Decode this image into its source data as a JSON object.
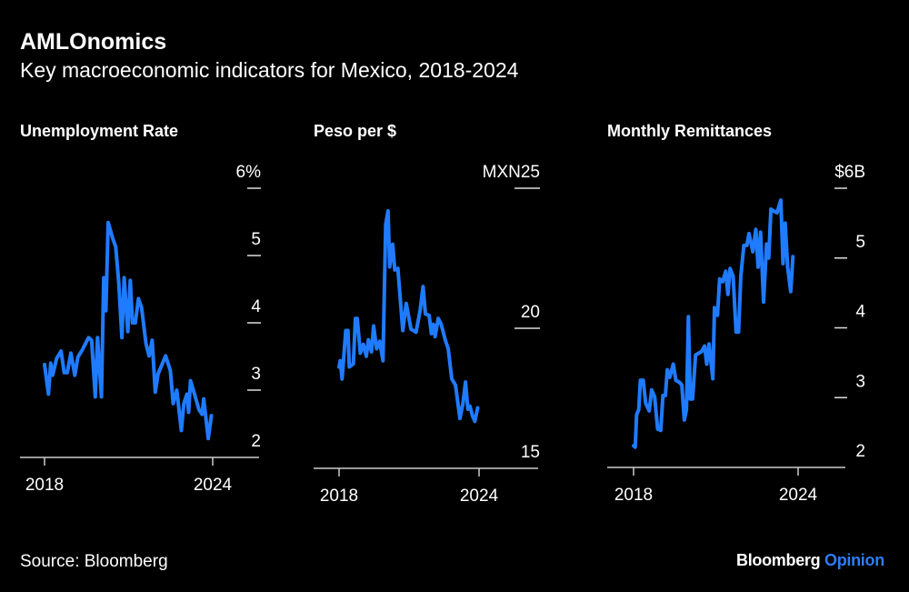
{
  "header": {
    "title": "AMLOnomics",
    "subtitle": "Key macroeconomic indicators for Mexico, 2018-2024"
  },
  "footer": {
    "source": "Source: Bloomberg",
    "brand_main": "Bloomberg",
    "brand_accent": "Opinion"
  },
  "colors": {
    "line": "#1f7bff",
    "background": "#000000",
    "text": "#ffffff",
    "axis": "#cccccc",
    "brand_accent": "#2f7cf6"
  },
  "chart_data": [
    {
      "type": "line",
      "title": "Unemployment Rate",
      "ylim": [
        2,
        6
      ],
      "yticks": [
        2,
        3,
        4,
        5,
        6
      ],
      "ytick_labels": [
        "2",
        "3",
        "4",
        "5",
        "6%"
      ],
      "xlim": [
        2018,
        2024
      ],
      "xtick_labels": [
        "2018",
        "2024"
      ],
      "grid": false,
      "points": [
        [
          2018.0,
          3.38
        ],
        [
          2018.14,
          2.94
        ],
        [
          2018.22,
          3.4
        ],
        [
          2018.29,
          3.22
        ],
        [
          2018.43,
          3.47
        ],
        [
          2018.59,
          3.58
        ],
        [
          2018.7,
          3.26
        ],
        [
          2018.81,
          3.26
        ],
        [
          2018.94,
          3.55
        ],
        [
          2019.08,
          3.22
        ],
        [
          2019.19,
          3.49
        ],
        [
          2019.35,
          3.6
        ],
        [
          2019.57,
          3.78
        ],
        [
          2019.68,
          3.74
        ],
        [
          2019.81,
          2.9
        ],
        [
          2019.89,
          3.78
        ],
        [
          2020.03,
          2.9
        ],
        [
          2020.11,
          4.67
        ],
        [
          2020.19,
          4.18
        ],
        [
          2020.27,
          5.49
        ],
        [
          2020.43,
          5.26
        ],
        [
          2020.54,
          5.13
        ],
        [
          2020.65,
          4.59
        ],
        [
          2020.76,
          3.78
        ],
        [
          2020.84,
          4.67
        ],
        [
          2020.97,
          3.87
        ],
        [
          2021.06,
          4.63
        ],
        [
          2021.14,
          4.0
        ],
        [
          2021.24,
          4.0
        ],
        [
          2021.35,
          4.36
        ],
        [
          2021.46,
          4.23
        ],
        [
          2021.62,
          3.69
        ],
        [
          2021.73,
          3.51
        ],
        [
          2021.84,
          3.74
        ],
        [
          2021.95,
          2.97
        ],
        [
          2022.05,
          3.24
        ],
        [
          2022.32,
          3.51
        ],
        [
          2022.49,
          3.29
        ],
        [
          2022.59,
          2.8
        ],
        [
          2022.72,
          3.0
        ],
        [
          2022.88,
          2.4
        ],
        [
          2022.97,
          2.8
        ],
        [
          2023.08,
          2.94
        ],
        [
          2023.14,
          2.67
        ],
        [
          2023.21,
          3.14
        ],
        [
          2023.35,
          2.94
        ],
        [
          2023.51,
          2.71
        ],
        [
          2023.62,
          2.64
        ],
        [
          2023.68,
          2.87
        ],
        [
          2023.84,
          2.28
        ],
        [
          2023.95,
          2.62
        ]
      ]
    },
    {
      "type": "line",
      "title": "Peso per $",
      "ylim": [
        15,
        25
      ],
      "yticks": [
        15,
        20,
        25
      ],
      "ytick_labels": [
        "15",
        "20",
        "MXN25"
      ],
      "xlim": [
        2018,
        2024
      ],
      "xtick_labels": [
        "2018",
        "2024"
      ],
      "grid": false,
      "points": [
        [
          2018.0,
          18.62
        ],
        [
          2018.05,
          18.84
        ],
        [
          2018.13,
          18.19
        ],
        [
          2018.29,
          19.92
        ],
        [
          2018.38,
          19.92
        ],
        [
          2018.44,
          18.62
        ],
        [
          2018.61,
          18.73
        ],
        [
          2018.7,
          20.35
        ],
        [
          2018.78,
          20.35
        ],
        [
          2018.91,
          19.11
        ],
        [
          2019.04,
          19.43
        ],
        [
          2019.17,
          19.0
        ],
        [
          2019.26,
          19.59
        ],
        [
          2019.39,
          19.16
        ],
        [
          2019.48,
          20.08
        ],
        [
          2019.61,
          19.27
        ],
        [
          2019.74,
          19.54
        ],
        [
          2019.88,
          18.84
        ],
        [
          2020.0,
          23.7
        ],
        [
          2020.1,
          24.19
        ],
        [
          2020.17,
          22.19
        ],
        [
          2020.3,
          23.0
        ],
        [
          2020.39,
          22.08
        ],
        [
          2020.52,
          22.14
        ],
        [
          2020.73,
          19.92
        ],
        [
          2020.88,
          20.89
        ],
        [
          2021.08,
          19.97
        ],
        [
          2021.3,
          19.86
        ],
        [
          2021.47,
          20.62
        ],
        [
          2021.6,
          21.49
        ],
        [
          2021.7,
          20.51
        ],
        [
          2021.86,
          20.46
        ],
        [
          2021.96,
          19.81
        ],
        [
          2022.05,
          20.14
        ],
        [
          2022.12,
          19.7
        ],
        [
          2022.25,
          20.35
        ],
        [
          2022.38,
          20.14
        ],
        [
          2022.55,
          19.59
        ],
        [
          2022.68,
          19.27
        ],
        [
          2022.83,
          18.19
        ],
        [
          2022.99,
          17.97
        ],
        [
          2023.18,
          16.78
        ],
        [
          2023.31,
          17.32
        ],
        [
          2023.42,
          18.08
        ],
        [
          2023.52,
          17.11
        ],
        [
          2023.61,
          17.22
        ],
        [
          2023.71,
          16.89
        ],
        [
          2023.82,
          16.68
        ],
        [
          2023.94,
          17.16
        ]
      ]
    },
    {
      "type": "line",
      "title": "Monthly Remittances",
      "ylim": [
        2,
        6
      ],
      "yticks": [
        2,
        3,
        4,
        5,
        6
      ],
      "ytick_labels": [
        "2",
        "3",
        "4",
        "5",
        "$6B"
      ],
      "xlim": [
        2018,
        2024
      ],
      "xtick_labels": [
        "2018",
        "2024"
      ],
      "grid": false,
      "points": [
        [
          2018.0,
          2.31
        ],
        [
          2018.06,
          2.29
        ],
        [
          2018.11,
          2.75
        ],
        [
          2018.19,
          2.83
        ],
        [
          2018.25,
          3.25
        ],
        [
          2018.35,
          3.25
        ],
        [
          2018.44,
          2.92
        ],
        [
          2018.57,
          2.81
        ],
        [
          2018.66,
          3.11
        ],
        [
          2018.77,
          3.01
        ],
        [
          2018.88,
          2.55
        ],
        [
          2018.99,
          2.53
        ],
        [
          2019.07,
          3.03
        ],
        [
          2019.16,
          3.03
        ],
        [
          2019.23,
          3.4
        ],
        [
          2019.32,
          3.29
        ],
        [
          2019.45,
          3.48
        ],
        [
          2019.54,
          3.25
        ],
        [
          2019.67,
          3.22
        ],
        [
          2019.76,
          3.18
        ],
        [
          2019.85,
          2.68
        ],
        [
          2019.93,
          2.83
        ],
        [
          2020.0,
          4.16
        ],
        [
          2020.07,
          2.98
        ],
        [
          2020.15,
          2.98
        ],
        [
          2020.26,
          3.61
        ],
        [
          2020.48,
          3.66
        ],
        [
          2020.59,
          3.74
        ],
        [
          2020.67,
          3.48
        ],
        [
          2020.75,
          3.77
        ],
        [
          2020.89,
          3.27
        ],
        [
          2020.95,
          4.29
        ],
        [
          2021.06,
          4.18
        ],
        [
          2021.14,
          4.7
        ],
        [
          2021.25,
          4.66
        ],
        [
          2021.36,
          4.81
        ],
        [
          2021.44,
          4.48
        ],
        [
          2021.52,
          4.85
        ],
        [
          2021.63,
          4.74
        ],
        [
          2021.74,
          3.94
        ],
        [
          2021.83,
          3.94
        ],
        [
          2021.91,
          4.74
        ],
        [
          2022.02,
          5.18
        ],
        [
          2022.13,
          5.18
        ],
        [
          2022.21,
          5.35
        ],
        [
          2022.35,
          5.09
        ],
        [
          2022.46,
          5.41
        ],
        [
          2022.54,
          4.87
        ],
        [
          2022.63,
          5.37
        ],
        [
          2022.74,
          4.37
        ],
        [
          2022.85,
          5.2
        ],
        [
          2022.93,
          5.0
        ],
        [
          2023.01,
          5.7
        ],
        [
          2023.12,
          5.67
        ],
        [
          2023.23,
          5.65
        ],
        [
          2023.37,
          5.83
        ],
        [
          2023.45,
          4.92
        ],
        [
          2023.53,
          5.5
        ],
        [
          2023.62,
          4.87
        ],
        [
          2023.73,
          4.52
        ],
        [
          2023.81,
          5.02
        ]
      ]
    }
  ]
}
